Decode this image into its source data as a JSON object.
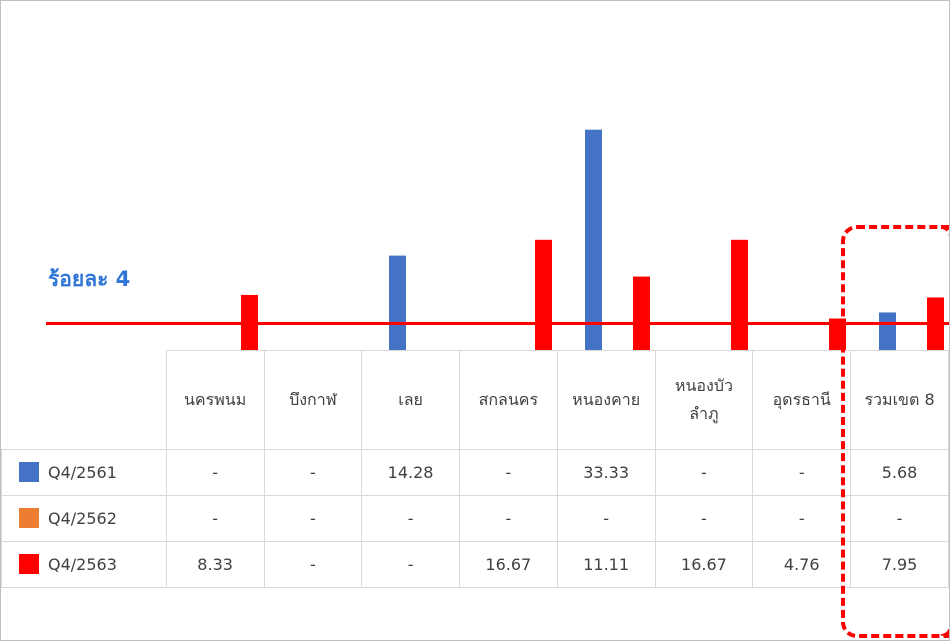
{
  "threshold_label": "ร้อยละ 4",
  "colors": {
    "q4_2561": "#4472c4",
    "q4_2562": "#ed7d31",
    "q4_2563": "#ff0000",
    "threshold_line": "#ff0000",
    "highlight": "#ff0000"
  },
  "chart_data": {
    "type": "bar",
    "categories": [
      "นครพนม",
      "บึงกาฬ",
      "เลย",
      "สกลนคร",
      "หนองคาย",
      "หนองบัว\nลำภู",
      "อุดรธานี",
      "รวมเขต 8"
    ],
    "category_lines": [
      [
        "นครพนม"
      ],
      [
        "บึงกาฬ"
      ],
      [
        "เลย"
      ],
      [
        "สกลนคร"
      ],
      [
        "หนองคาย"
      ],
      [
        "หนองบัว",
        "ลำภู"
      ],
      [
        "อุดรธานี"
      ],
      [
        "รวมเขต 8"
      ]
    ],
    "series": [
      {
        "name": "Q4/2561",
        "color": "#4472c4",
        "values": [
          null,
          null,
          14.28,
          null,
          33.33,
          null,
          null,
          5.68
        ],
        "labels": [
          "-",
          "-",
          "14.28",
          "-",
          "33.33",
          "-",
          "-",
          "5.68"
        ]
      },
      {
        "name": "Q4/2562",
        "color": "#ed7d31",
        "values": [
          null,
          null,
          null,
          null,
          null,
          null,
          null,
          null
        ],
        "labels": [
          "-",
          "-",
          "-",
          "-",
          "-",
          "-",
          "-",
          "-"
        ]
      },
      {
        "name": "Q4/2563",
        "color": "#ff0000",
        "values": [
          8.33,
          null,
          null,
          16.67,
          11.11,
          16.67,
          4.76,
          7.95
        ],
        "labels": [
          "8.33",
          "-",
          "-",
          "16.67",
          "11.11",
          "16.67",
          "4.76",
          "7.95"
        ]
      }
    ],
    "threshold": 4,
    "legend": "table"
  }
}
